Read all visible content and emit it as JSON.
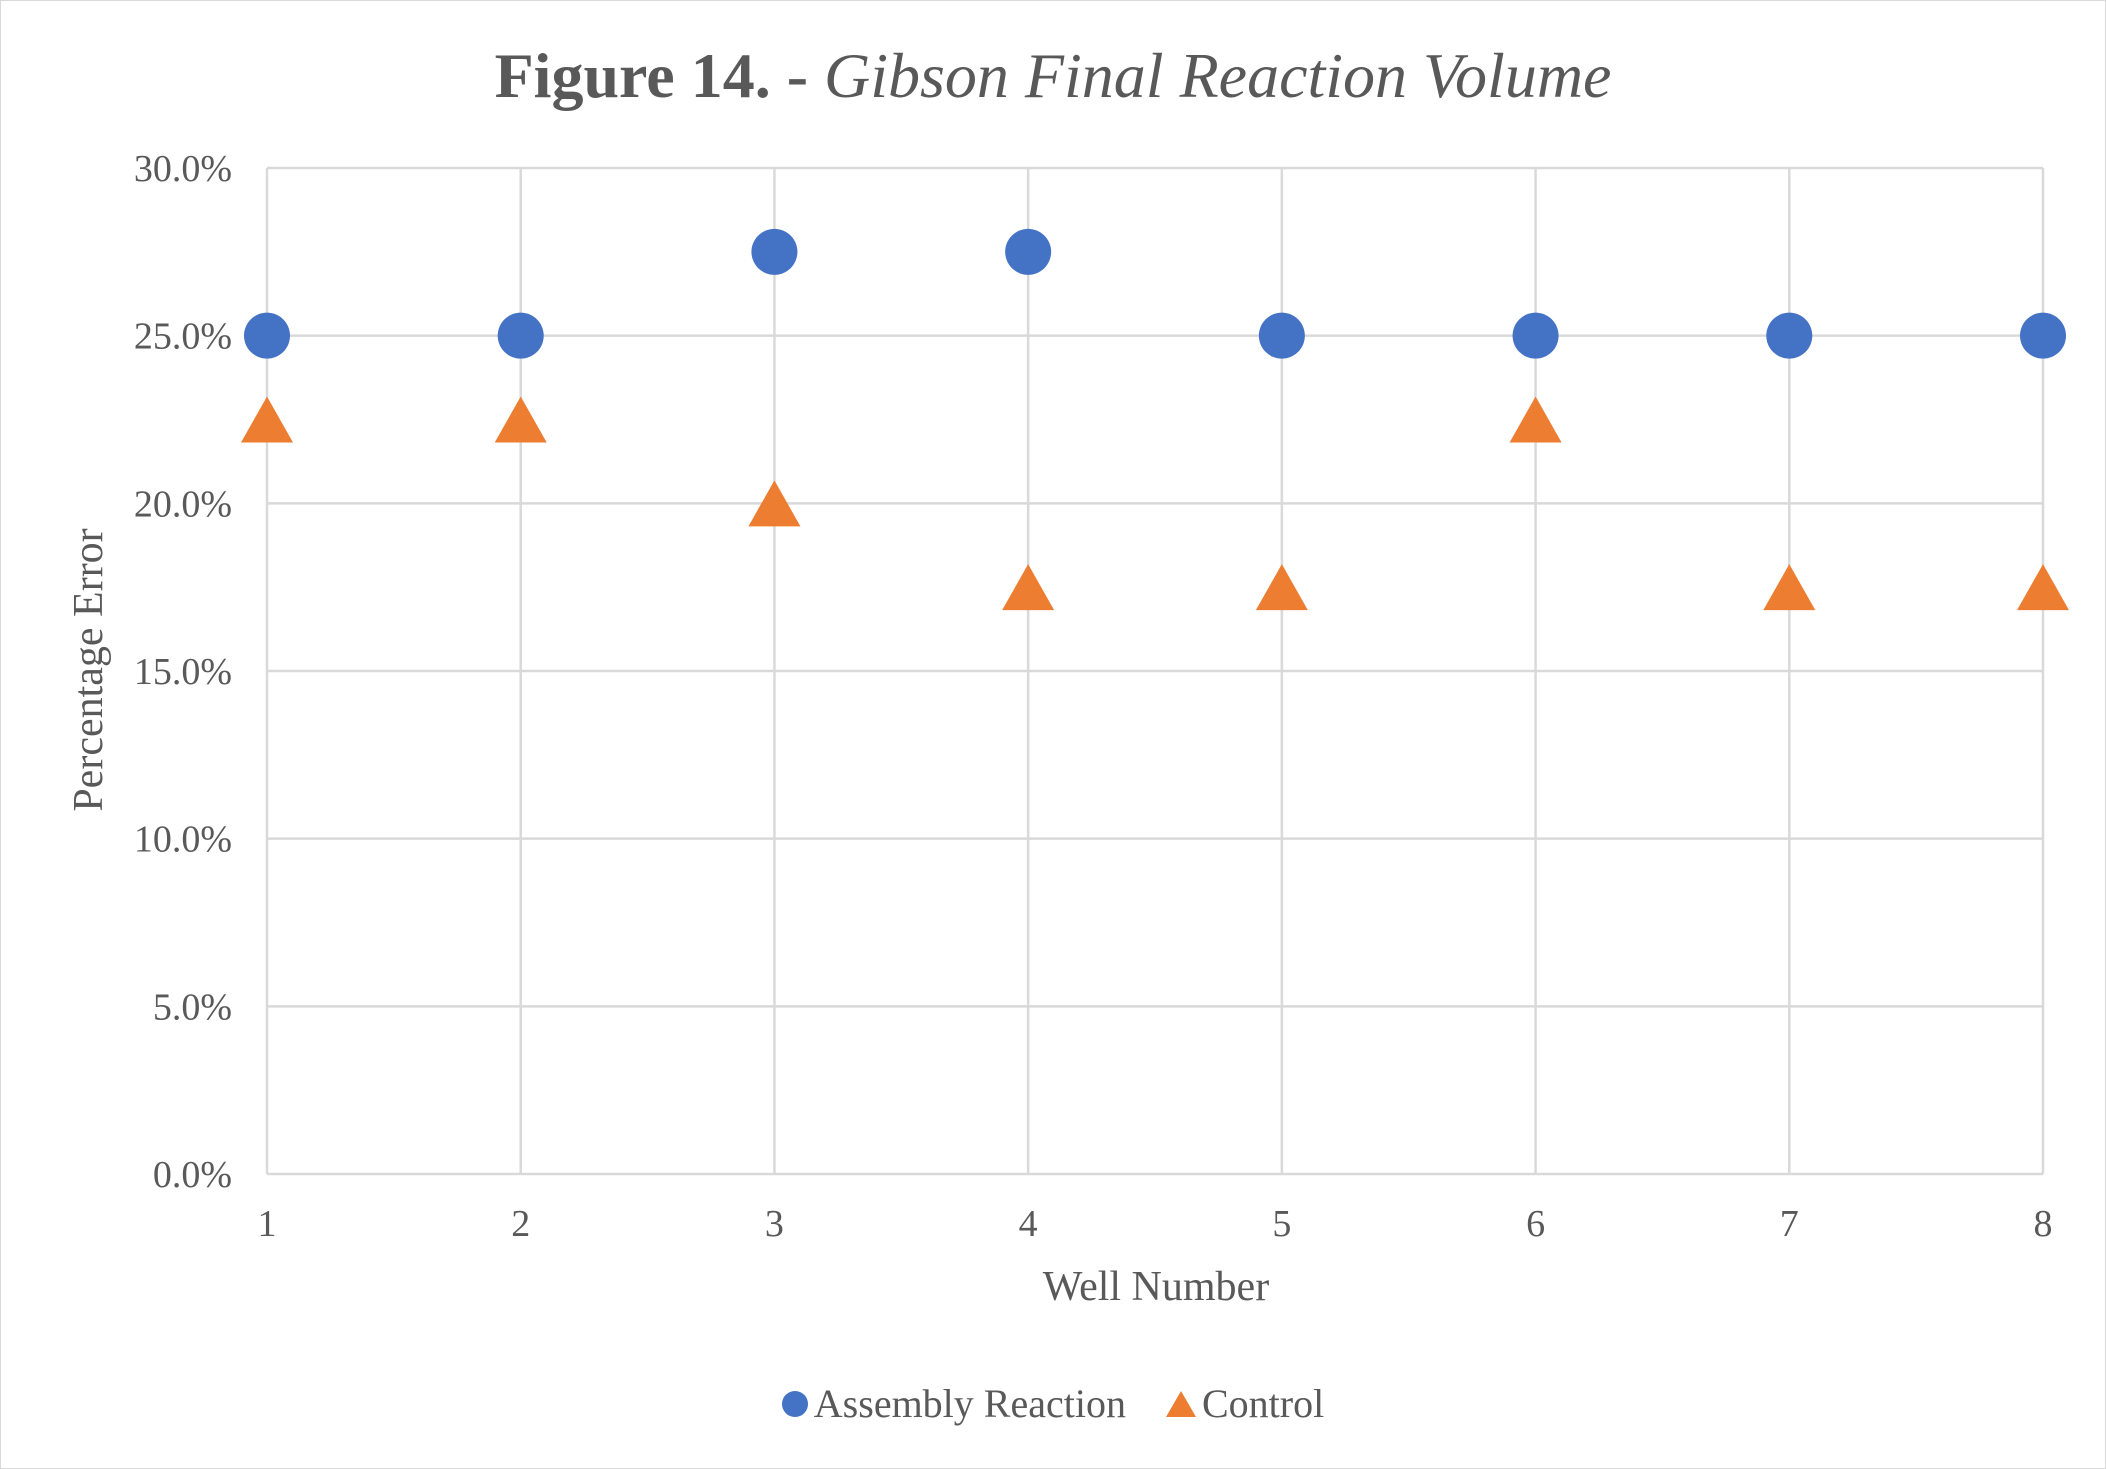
{
  "chart_data": {
    "type": "scatter",
    "title": {
      "bold": "Figure 14.",
      "separator": " - ",
      "italic": "Gibson Final Reaction Volume"
    },
    "xlabel": "Well Number",
    "ylabel": "Percentage Error",
    "xlim": [
      1,
      8
    ],
    "ylim": [
      0,
      0.3
    ],
    "x_ticks": [
      1,
      2,
      3,
      4,
      5,
      6,
      7,
      8
    ],
    "x_tick_labels": [
      "1",
      "2",
      "3",
      "4",
      "5",
      "6",
      "7",
      "8"
    ],
    "y_ticks": [
      0,
      0.05,
      0.1,
      0.15,
      0.2,
      0.25,
      0.3
    ],
    "y_tick_labels": [
      "0.0%",
      "5.0%",
      "10.0%",
      "15.0%",
      "20.0%",
      "25.0%",
      "30.0%"
    ],
    "grid": true,
    "legend_position": "bottom",
    "x": [
      1,
      2,
      3,
      4,
      5,
      6,
      7,
      8
    ],
    "series": [
      {
        "name": "Assembly Reaction",
        "marker": "circle",
        "color": "#4472c4",
        "values": [
          0.25,
          0.25,
          0.275,
          0.275,
          0.25,
          0.25,
          0.25,
          0.25
        ]
      },
      {
        "name": "Control",
        "marker": "triangle",
        "color": "#ed7d31",
        "values": [
          0.225,
          0.225,
          0.2,
          0.175,
          0.175,
          0.225,
          0.175,
          0.175
        ]
      }
    ]
  }
}
